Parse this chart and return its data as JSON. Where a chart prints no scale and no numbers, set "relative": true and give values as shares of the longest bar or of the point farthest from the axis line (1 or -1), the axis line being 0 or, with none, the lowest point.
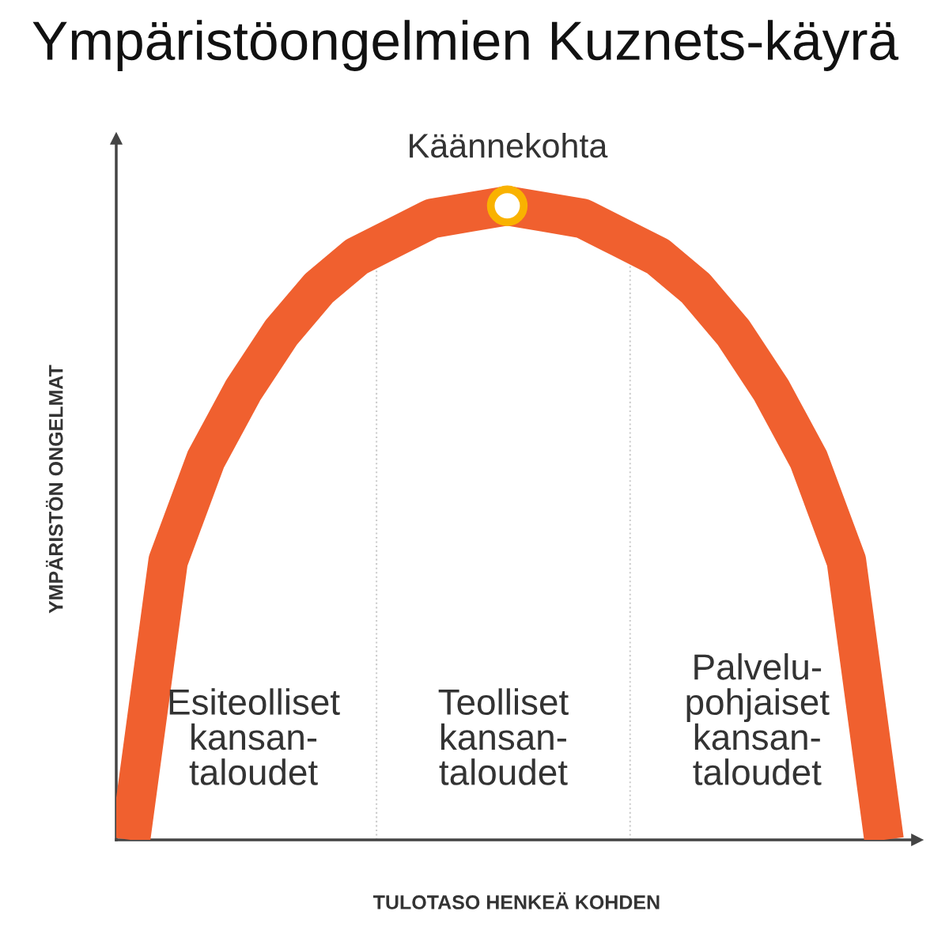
{
  "chart_data": {
    "type": "line",
    "title": "Ympäristöongelmien Kuznets-käyrä",
    "xlabel": "TULOTASO HENKEÄ KOHDEN",
    "ylabel": "YMPÄRISTÖN ONGELMAT",
    "relative": true,
    "categories": [
      null,
      null,
      null,
      null,
      null,
      null,
      null,
      null,
      null,
      null,
      null,
      null,
      null,
      null,
      null,
      null,
      null,
      null,
      null,
      null,
      null
    ],
    "series": [
      {
        "values": [
          0,
          0.44,
          0.6,
          0.71,
          0.8,
          0.87,
          0.92,
          0.95,
          0.98,
          0.99,
          1,
          0.99,
          0.98,
          0.95,
          0.92,
          0.87,
          0.8,
          0.71,
          0.6,
          0.44,
          0
        ],
        "marker": "none",
        "line_style": "solid",
        "color": "#f0602f"
      }
    ],
    "annotations": [
      "Käännekohta",
      "Esiteolliset\nkansan-\ntaloudet",
      "Teolliset\nkansan-\ntaloudet",
      "Palvelu-\npohjaiset\nkansan-\ntaloudet"
    ]
  }
}
